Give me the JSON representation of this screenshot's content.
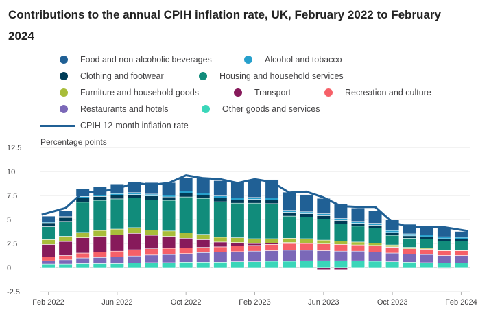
{
  "chart_data": {
    "type": "bar",
    "stacked": true,
    "title": "Contributions to the annual CPIH inflation rate, UK, February 2022 to February 2024",
    "ylabel": "Percentage points",
    "ylim": [
      -2.5,
      12.5
    ],
    "yticks": [
      "12.5",
      "10",
      "7.5",
      "5",
      "2.5",
      "0",
      "-2.5"
    ],
    "grid": true,
    "legend_position": "top",
    "categories": [
      "Feb 2022",
      "Mar 2022",
      "Apr 2022",
      "May 2022",
      "Jun 2022",
      "Jul 2022",
      "Aug 2022",
      "Sep 2022",
      "Oct 2022",
      "Nov 2022",
      "Dec 2022",
      "Jan 2023",
      "Feb 2023",
      "Mar 2023",
      "Apr 2023",
      "May 2023",
      "Jun 2023",
      "Jul 2023",
      "Aug 2023",
      "Sep 2023",
      "Oct 2023",
      "Nov 2023",
      "Dec 2023",
      "Jan 2024",
      "Feb 2024"
    ],
    "xtick_labels": [
      {
        "index": 0,
        "label": "Feb 2022"
      },
      {
        "index": 4,
        "label": "Jun 2022"
      },
      {
        "index": 8,
        "label": "Oct 2022"
      },
      {
        "index": 12,
        "label": "Feb 2023"
      },
      {
        "index": 16,
        "label": "Jun 2023"
      },
      {
        "index": 20,
        "label": "Oct 2023"
      },
      {
        "index": 24,
        "label": "Feb 2024"
      }
    ],
    "series": [
      {
        "name": "Other goods and services",
        "color": "#3ad6b9",
        "values": [
          0.35,
          0.35,
          0.4,
          0.4,
          0.4,
          0.45,
          0.5,
          0.5,
          0.55,
          0.55,
          0.55,
          0.6,
          0.6,
          0.65,
          0.65,
          0.7,
          0.7,
          0.7,
          0.7,
          0.65,
          0.6,
          0.55,
          0.5,
          0.45,
          0.45
        ]
      },
      {
        "name": "Restaurants and hotels",
        "color": "#7b68b8",
        "values": [
          0.35,
          0.45,
          0.6,
          0.65,
          0.7,
          0.75,
          0.8,
          0.85,
          0.9,
          1.0,
          1.05,
          1.05,
          1.1,
          1.1,
          1.15,
          1.1,
          1.05,
          1.0,
          1.0,
          0.95,
          0.9,
          0.85,
          0.85,
          0.8,
          0.8
        ]
      },
      {
        "name": "Recreation and culture",
        "color": "#f66068",
        "values": [
          0.4,
          0.45,
          0.5,
          0.55,
          0.6,
          0.65,
          0.65,
          0.65,
          0.6,
          0.55,
          0.55,
          0.6,
          0.6,
          0.65,
          0.7,
          0.7,
          0.7,
          0.7,
          0.65,
          0.65,
          0.6,
          0.55,
          0.55,
          0.5,
          0.5
        ]
      },
      {
        "name": "Transport",
        "color": "#871a5b",
        "values": [
          1.3,
          1.45,
          1.6,
          1.65,
          1.7,
          1.7,
          1.4,
          1.25,
          1.0,
          0.8,
          0.5,
          0.35,
          0.2,
          0.15,
          0.1,
          0.05,
          -0.2,
          -0.2,
          -0.05,
          0.05,
          0.05,
          0.0,
          -0.05,
          -0.1,
          -0.05
        ]
      },
      {
        "name": "Furniture and household goods",
        "color": "#a8bd3a",
        "values": [
          0.5,
          0.55,
          0.55,
          0.6,
          0.6,
          0.6,
          0.55,
          0.55,
          0.55,
          0.55,
          0.5,
          0.5,
          0.5,
          0.45,
          0.45,
          0.45,
          0.4,
          0.35,
          0.3,
          0.25,
          0.2,
          0.15,
          0.1,
          0.05,
          0.05
        ]
      },
      {
        "name": "Housing and household services",
        "color": "#118c7b",
        "values": [
          1.35,
          1.55,
          3.15,
          3.15,
          3.15,
          3.1,
          3.15,
          3.2,
          3.75,
          3.75,
          3.7,
          3.6,
          3.7,
          3.65,
          2.3,
          2.25,
          2.2,
          1.8,
          1.65,
          1.55,
          1.0,
          0.95,
          0.95,
          0.95,
          0.95
        ]
      },
      {
        "name": "Clothing and footwear",
        "color": "#003c57",
        "values": [
          0.4,
          0.4,
          0.45,
          0.4,
          0.4,
          0.35,
          0.4,
          0.35,
          0.4,
          0.35,
          0.4,
          0.35,
          0.4,
          0.4,
          0.4,
          0.35,
          0.35,
          0.35,
          0.3,
          0.3,
          0.3,
          0.25,
          0.25,
          0.25,
          0.2
        ]
      },
      {
        "name": "Alcohol and tobacco",
        "color": "#27a0cc",
        "values": [
          0.1,
          0.1,
          0.15,
          0.15,
          0.15,
          0.2,
          0.2,
          0.2,
          0.2,
          0.2,
          0.2,
          0.2,
          0.2,
          0.2,
          0.2,
          0.2,
          0.2,
          0.2,
          0.2,
          0.2,
          0.2,
          0.2,
          0.2,
          0.2,
          0.2
        ]
      },
      {
        "name": "Food and non-alcoholic beverages",
        "color": "#206095",
        "values": [
          0.6,
          0.6,
          0.8,
          0.85,
          1.0,
          1.1,
          1.2,
          1.3,
          1.4,
          1.6,
          1.6,
          1.7,
          1.8,
          1.9,
          1.9,
          1.8,
          1.6,
          1.5,
          1.4,
          1.3,
          1.1,
          1.0,
          0.95,
          0.9,
          0.6
        ]
      }
    ],
    "line": {
      "name": "CPIH 12-month inflation rate",
      "color": "#206095",
      "values": [
        5.5,
        6.2,
        7.8,
        7.9,
        8.2,
        8.8,
        8.6,
        8.8,
        9.6,
        9.3,
        9.2,
        8.8,
        9.2,
        8.9,
        7.8,
        7.9,
        7.3,
        6.4,
        6.3,
        6.3,
        4.7,
        4.2,
        4.2,
        4.2,
        3.8
      ]
    },
    "legend": [
      {
        "name": "Food and non-alcoholic beverages",
        "color": "#206095"
      },
      {
        "name": "Alcohol and tobacco",
        "color": "#27a0cc"
      },
      {
        "name": "Clothing and footwear",
        "color": "#003c57"
      },
      {
        "name": "Housing and household services",
        "color": "#118c7b"
      },
      {
        "name": "Furniture and household goods",
        "color": "#a8bd3a"
      },
      {
        "name": "Transport",
        "color": "#871a5b"
      },
      {
        "name": "Recreation and culture",
        "color": "#f66068"
      },
      {
        "name": "Restaurants and hotels",
        "color": "#7b68b8"
      },
      {
        "name": "Other goods and services",
        "color": "#3ad6b9"
      },
      {
        "name": "CPIH 12-month inflation rate",
        "color": "#206095",
        "kind": "line"
      }
    ]
  }
}
